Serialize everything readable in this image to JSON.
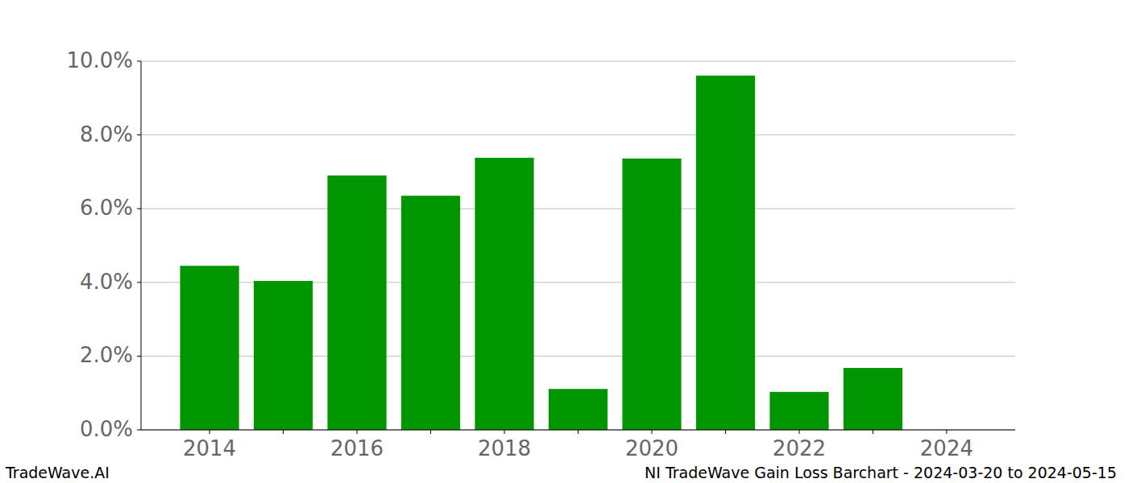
{
  "chart_data": {
    "type": "bar",
    "title": "NI TradeWave Gain Loss Barchart - 2024-03-20 to 2024-05-15",
    "annotations": [
      "TradeWave.AI"
    ],
    "categories": [
      "2014",
      null,
      "2016",
      null,
      "2018",
      null,
      "2020",
      null,
      "2022",
      null,
      "2024"
    ],
    "values": [
      4.45,
      4.04,
      6.9,
      6.35,
      7.38,
      1.11,
      7.36,
      9.61,
      1.03,
      1.68,
      null
    ],
    "color": "#009600",
    "ylim": [
      0,
      10
    ],
    "yticks": [
      {
        "value": 0,
        "label": "0.0%"
      },
      {
        "value": 2,
        "label": "2.0%"
      },
      {
        "value": 4,
        "label": "4.0%"
      },
      {
        "value": 6,
        "label": "6.0%"
      },
      {
        "value": 8,
        "label": "8.0%"
      },
      {
        "value": 10,
        "label": "10.0%"
      }
    ],
    "grid": true
  }
}
